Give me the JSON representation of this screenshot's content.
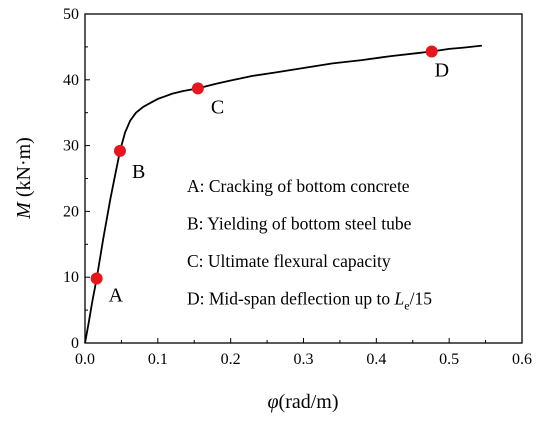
{
  "chart_data": {
    "type": "line",
    "xlabel": {
      "symbol": "φ",
      "unit": "(rad/m)"
    },
    "ylabel": {
      "symbol": "M",
      "unit": " (kN·m)"
    },
    "xlim": [
      0,
      0.6
    ],
    "ylim": [
      0,
      50
    ],
    "x_ticks": [
      "0.0",
      "0.1",
      "0.2",
      "0.3",
      "0.4",
      "0.5",
      "0.6"
    ],
    "y_ticks": [
      "0",
      "10",
      "20",
      "30",
      "40",
      "50"
    ],
    "grid": false,
    "series": [
      {
        "color": "#000000",
        "x": [
          0,
          0.005,
          0.01,
          0.016,
          0.025,
          0.035,
          0.048,
          0.055,
          0.062,
          0.07,
          0.08,
          0.09,
          0.1,
          0.11,
          0.12,
          0.135,
          0.155,
          0.18,
          0.2,
          0.23,
          0.26,
          0.3,
          0.34,
          0.38,
          0.42,
          0.46,
          0.476,
          0.5,
          0.52,
          0.545
        ],
        "y": [
          0,
          3.0,
          6.3,
          9.8,
          15.8,
          22.0,
          29.2,
          32.0,
          33.8,
          35.0,
          35.9,
          36.5,
          37.1,
          37.5,
          37.9,
          38.3,
          38.7,
          39.4,
          39.9,
          40.6,
          41.1,
          41.8,
          42.5,
          43.0,
          43.6,
          44.1,
          44.3,
          44.7,
          44.9,
          45.2
        ]
      }
    ],
    "points": [
      {
        "label": "A",
        "x": 0.016,
        "y": 9.8
      },
      {
        "label": "B",
        "x": 0.048,
        "y": 29.2
      },
      {
        "label": "C",
        "x": 0.155,
        "y": 38.7
      },
      {
        "label": "D",
        "x": 0.476,
        "y": 44.3
      }
    ],
    "point_color": "#e8161c",
    "legend": [
      {
        "text": "A: Cracking of bottom concrete"
      },
      {
        "text": "B: Yielding of bottom steel tube"
      },
      {
        "text": "C: Ultimate flexural capacity"
      },
      {
        "text": "D: Mid-span deflection up to ",
        "sym": "L",
        "sub": "e",
        "tail": "/15"
      }
    ]
  }
}
